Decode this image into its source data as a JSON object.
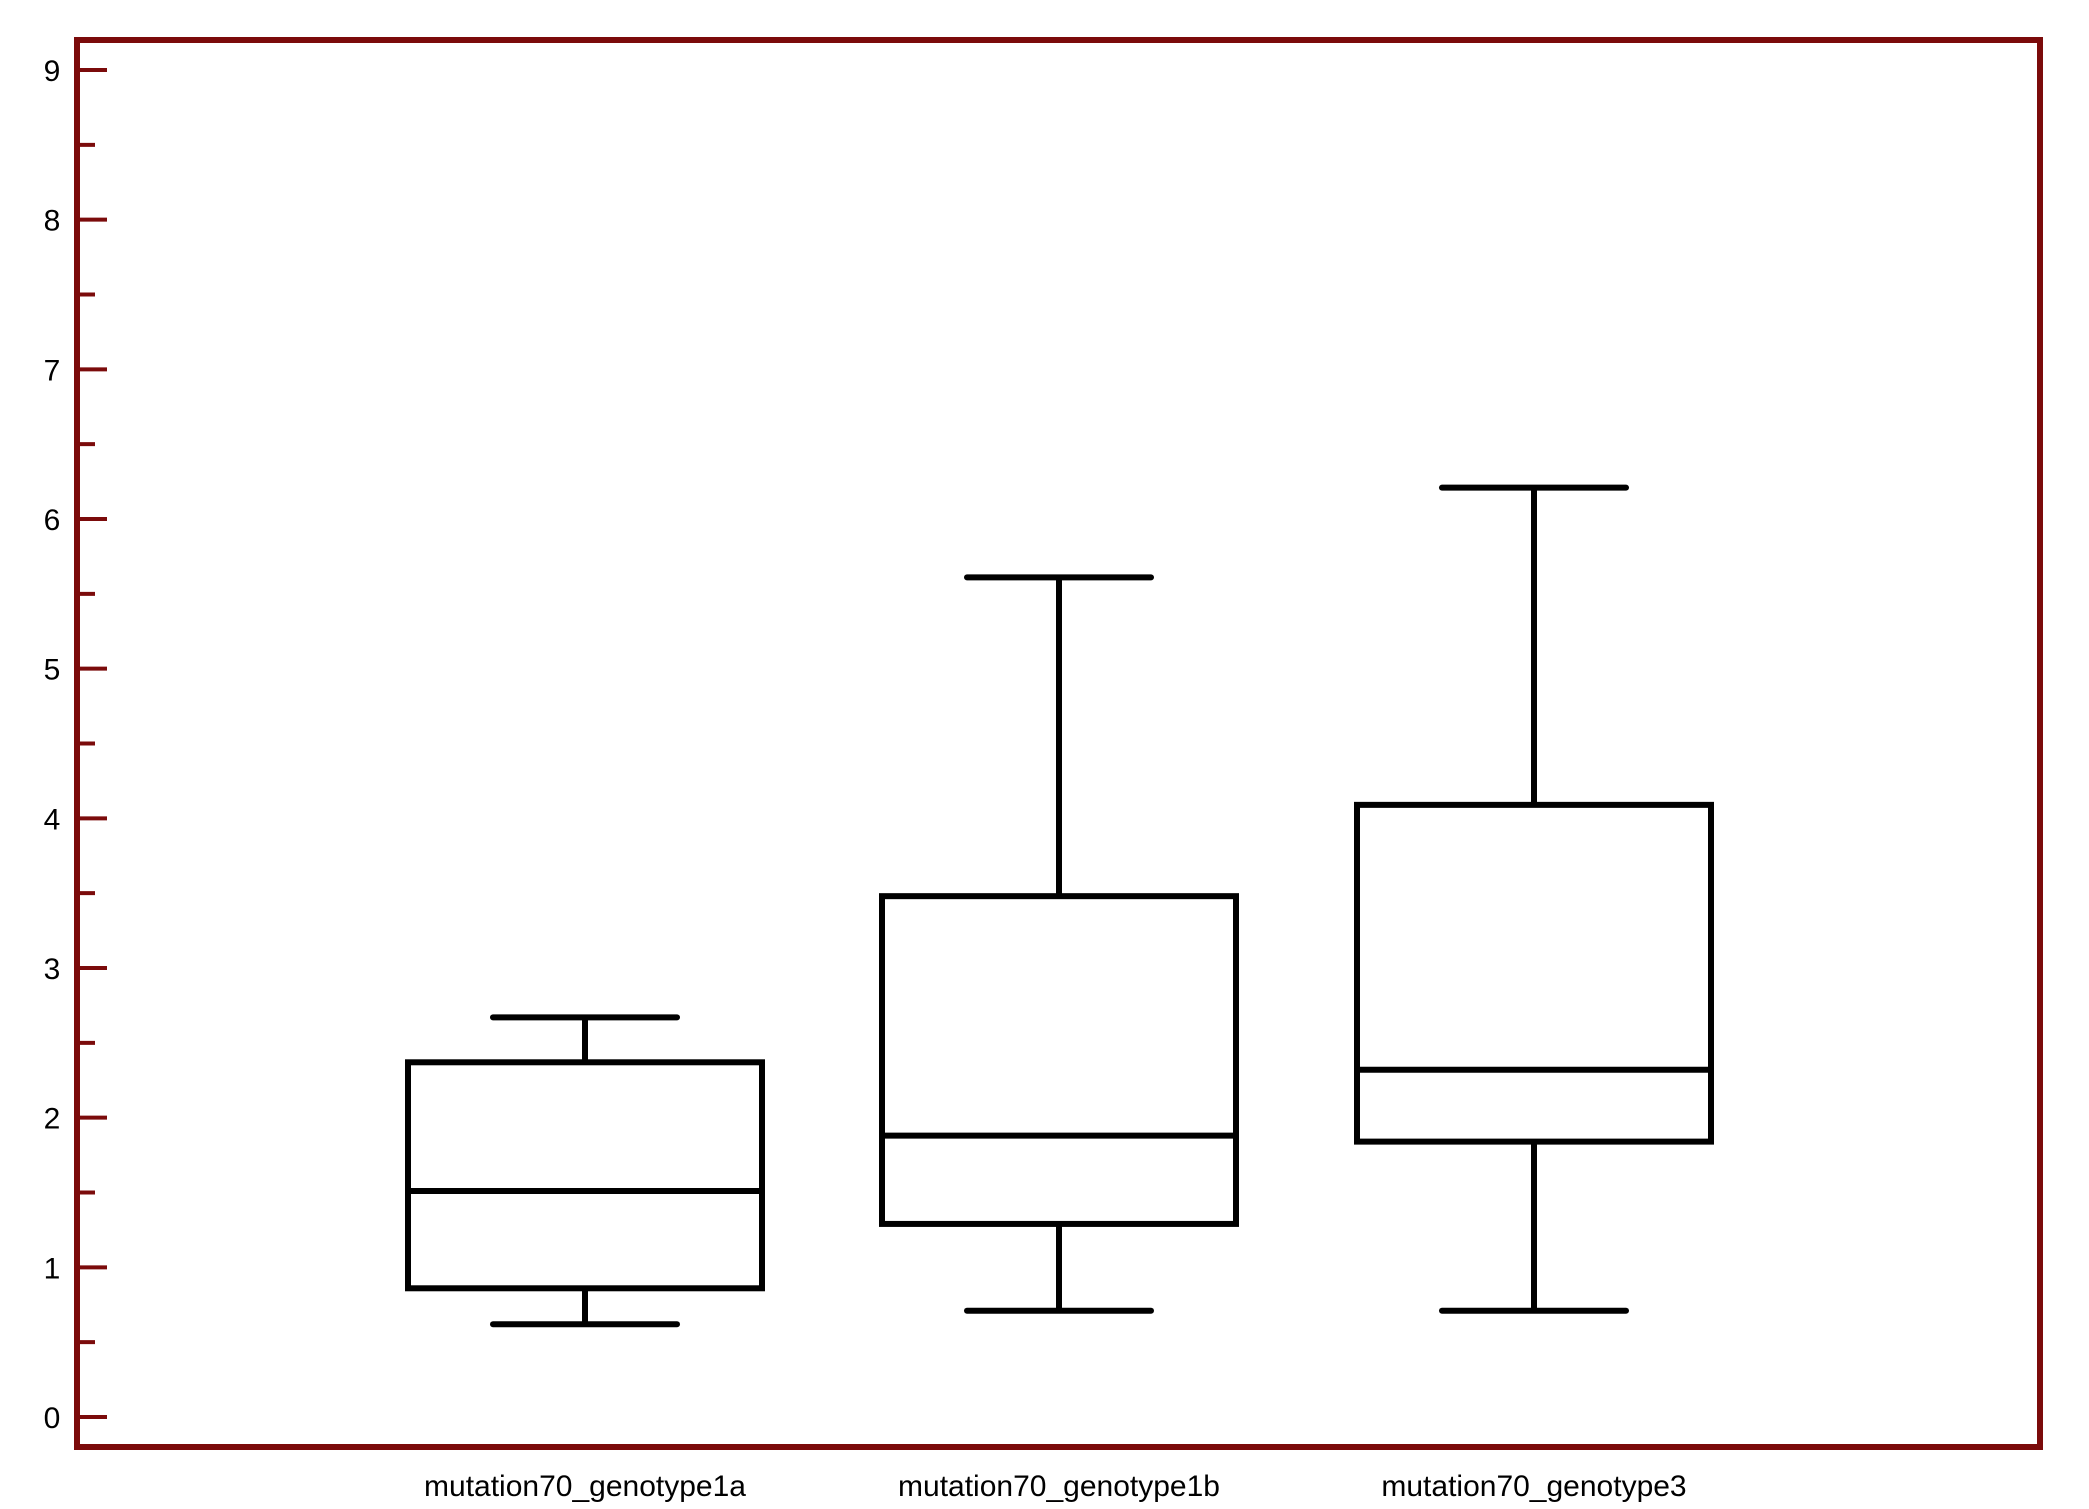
{
  "chart_data": {
    "type": "boxplot",
    "title": "",
    "xlabel": "",
    "ylabel": "",
    "ylim": [
      0,
      9
    ],
    "yticks": [
      0,
      1,
      2,
      3,
      4,
      5,
      6,
      7,
      8,
      9
    ],
    "minor_tick_step": 0.5,
    "grid": false,
    "legend": "none",
    "categories": [
      "mutation70_genotype1a",
      "mutation70_genotype1b",
      "mutation70_genotype3"
    ],
    "boxes": [
      {
        "category": "mutation70_genotype1a",
        "whisker_low": 0.62,
        "q1": 0.86,
        "median": 1.51,
        "q3": 2.37,
        "whisker_high": 2.67
      },
      {
        "category": "mutation70_genotype1b",
        "whisker_low": 0.71,
        "q1": 1.29,
        "median": 1.88,
        "q3": 3.48,
        "whisker_high": 5.61
      },
      {
        "category": "mutation70_genotype3",
        "whisker_low": 0.71,
        "q1": 1.84,
        "median": 2.32,
        "q3": 4.09,
        "whisker_high": 6.21
      }
    ],
    "colors": {
      "frame": "#7b0b0b",
      "box": "#000000",
      "background": "#ffffff"
    }
  }
}
